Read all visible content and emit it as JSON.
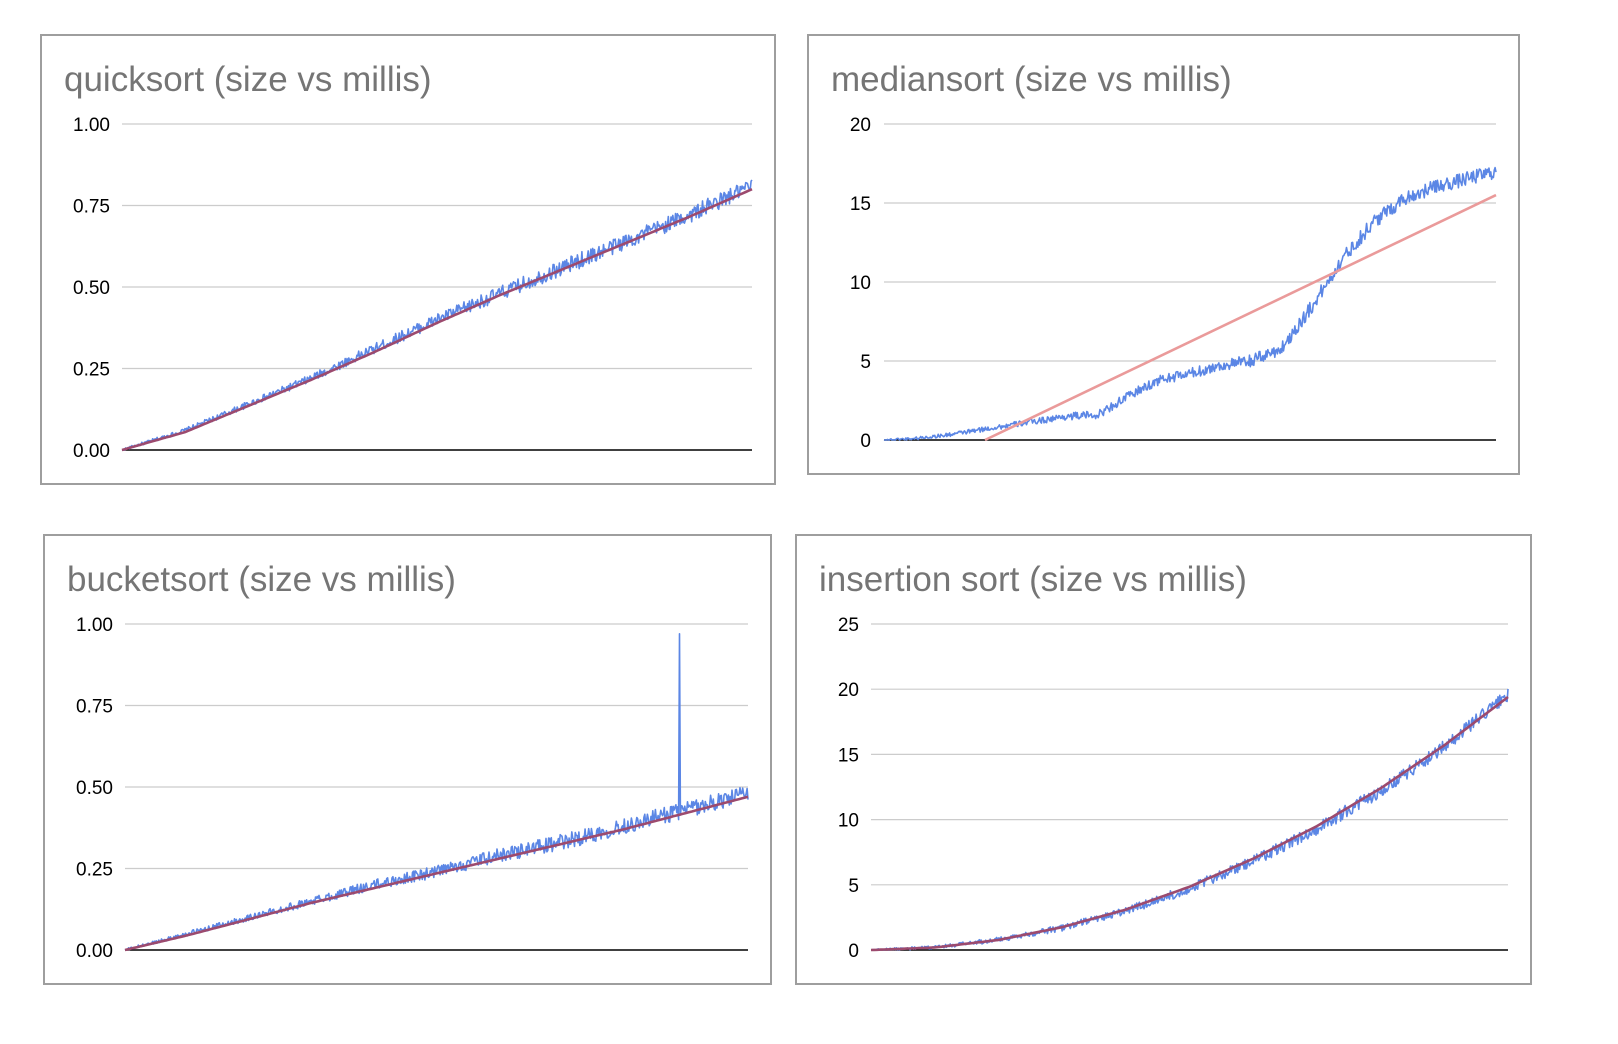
{
  "colors": {
    "series": "#5b86e5",
    "trendline": "#9c4a6e",
    "trendline_linear": "#ea9a9a",
    "title": "#757575",
    "grid": "#cccccc"
  },
  "chart_data": [
    {
      "type": "line",
      "title": "quicksort (size vs millis)",
      "ylim": [
        0,
        1
      ],
      "yticks": [
        "1.00",
        "0.75",
        "0.50",
        "0.25",
        "0.00"
      ],
      "grid": true,
      "legend": "none",
      "x": [
        0,
        0.1,
        0.2,
        0.3,
        0.4,
        0.5,
        0.6,
        0.7,
        0.8,
        0.9,
        1.0
      ],
      "series": [
        {
          "values": [
            0.0,
            0.06,
            0.14,
            0.22,
            0.31,
            0.4,
            0.48,
            0.56,
            0.64,
            0.72,
            0.81
          ],
          "noise": 0.025
        }
      ],
      "trendline": {
        "kind": "smooth",
        "values": [
          0.0,
          0.055,
          0.135,
          0.215,
          0.3,
          0.39,
          0.475,
          0.555,
          0.635,
          0.715,
          0.8
        ]
      }
    },
    {
      "type": "line",
      "title": "mediansort (size vs millis)",
      "ylim": [
        0,
        20
      ],
      "yticks": [
        "20",
        "15",
        "10",
        "5",
        "0"
      ],
      "grid": true,
      "legend": "none",
      "x": [
        0,
        0.05,
        0.1,
        0.15,
        0.2,
        0.25,
        0.3,
        0.35,
        0.4,
        0.45,
        0.5,
        0.55,
        0.6,
        0.65,
        0.7,
        0.75,
        0.8,
        0.85,
        0.9,
        0.95,
        1.0
      ],
      "series": [
        {
          "values": [
            0.0,
            0.1,
            0.3,
            0.6,
            0.9,
            1.2,
            1.5,
            1.6,
            2.8,
            3.8,
            4.2,
            4.7,
            5.0,
            5.8,
            8.5,
            11.5,
            13.8,
            15.3,
            16.0,
            16.5,
            17.0
          ],
          "noise": 0.45
        }
      ],
      "trendline": {
        "kind": "linear",
        "start": [
          0.165,
          0.0
        ],
        "end": [
          1.0,
          15.5
        ]
      }
    },
    {
      "type": "line",
      "title": "bucketsort (size vs millis)",
      "ylim": [
        0,
        1
      ],
      "yticks": [
        "1.00",
        "0.75",
        "0.50",
        "0.25",
        "0.00"
      ],
      "grid": true,
      "legend": "none",
      "x": [
        0,
        0.1,
        0.2,
        0.3,
        0.4,
        0.5,
        0.6,
        0.7,
        0.8,
        0.9,
        1.0
      ],
      "series": [
        {
          "values": [
            0.0,
            0.05,
            0.1,
            0.15,
            0.2,
            0.24,
            0.29,
            0.33,
            0.38,
            0.43,
            0.48
          ],
          "noise": 0.025,
          "spike": {
            "x": 0.89,
            "value": 0.97
          }
        }
      ],
      "trendline": {
        "kind": "smooth",
        "values": [
          0.0,
          0.045,
          0.095,
          0.145,
          0.19,
          0.235,
          0.28,
          0.325,
          0.37,
          0.42,
          0.47
        ]
      }
    },
    {
      "type": "line",
      "title": "insertion sort (size vs millis)",
      "ylim": [
        0,
        25
      ],
      "yticks": [
        "25",
        "20",
        "15",
        "10",
        "5",
        "0"
      ],
      "grid": true,
      "legend": "none",
      "x": [
        0,
        0.1,
        0.2,
        0.3,
        0.4,
        0.5,
        0.6,
        0.7,
        0.8,
        0.9,
        1.0
      ],
      "series": [
        {
          "values": [
            0.0,
            0.2,
            0.8,
            1.7,
            3.0,
            4.7,
            6.8,
            9.3,
            12.2,
            15.6,
            19.6
          ],
          "noise": 0.5
        }
      ],
      "trendline": {
        "kind": "smooth",
        "values": [
          0.0,
          0.19,
          0.77,
          1.75,
          3.1,
          4.85,
          7.0,
          9.5,
          12.4,
          15.7,
          19.4
        ]
      }
    }
  ]
}
